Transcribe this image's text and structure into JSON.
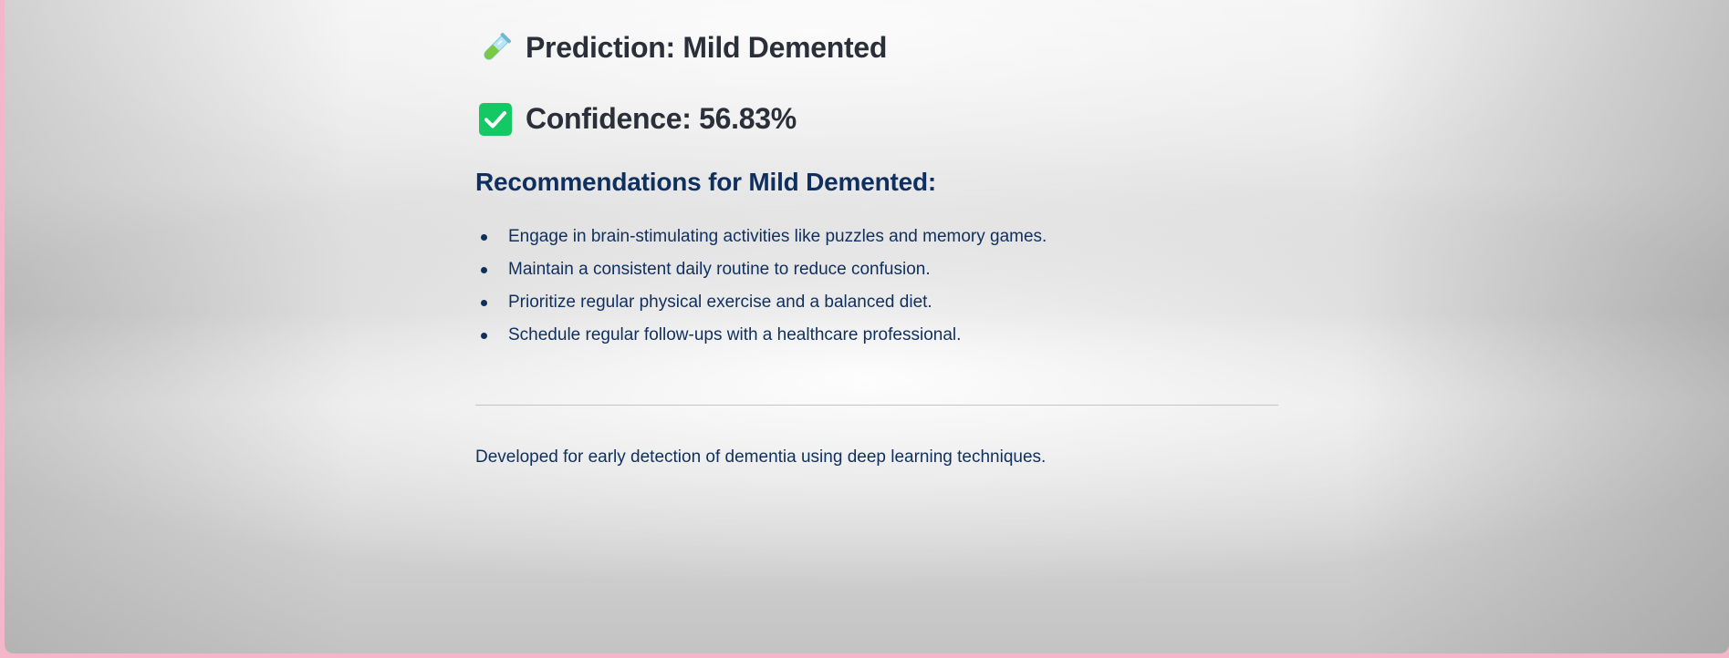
{
  "result": {
    "prediction_icon": "test-tube-icon",
    "prediction_text": "Prediction: Mild Demented",
    "confidence_icon": "check-mark-button-icon",
    "confidence_text": "Confidence: 56.83%"
  },
  "recommendations": {
    "heading": "Recommendations for Mild Demented:",
    "items": [
      "Engage in brain-stimulating activities like puzzles and memory games.",
      "Maintain a consistent daily routine to reduce confusion.",
      "Prioritize regular physical exercise and a balanced diet.",
      "Schedule regular follow-ups with a healthcare professional."
    ]
  },
  "footer": {
    "text": "Developed for early detection of dementia using deep learning techniques."
  },
  "colors": {
    "page_border": "#f4b6c8",
    "heading_text": "#2b2f3a",
    "body_text": "#0f2f5e",
    "check_green": "#14c964"
  }
}
